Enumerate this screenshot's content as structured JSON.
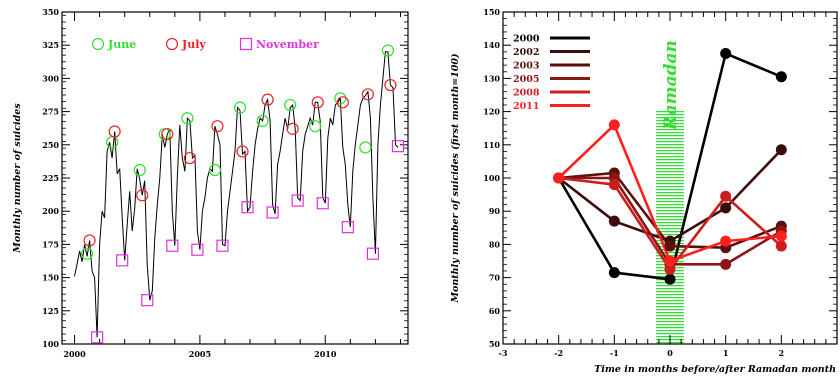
{
  "chart_data": [
    {
      "type": "line",
      "ylabel": "Monthly number of suicides",
      "xlabel": "",
      "ylim": [
        100,
        350
      ],
      "yticks": [
        100,
        125,
        150,
        175,
        200,
        225,
        250,
        275,
        300,
        325,
        350
      ],
      "xlim": [
        1999.5,
        2013.3
      ],
      "xticks": [
        2000,
        2005,
        2010
      ],
      "legend_position": "top-left",
      "legend": [
        {
          "name": "June",
          "marker": "circle",
          "color": "#33dd33"
        },
        {
          "name": "July",
          "marker": "circle",
          "color": "#ee2222"
        },
        {
          "name": "November",
          "marker": "square",
          "color": "#dd33dd"
        }
      ],
      "series": [
        {
          "name": "",
          "x": [
            2000.0,
            2000.1,
            2000.2,
            2000.3,
            2000.4,
            2000.5,
            2000.6,
            2000.7,
            2000.8,
            2000.9,
            2001.0,
            2001.1,
            2001.2,
            2001.3,
            2001.4,
            2001.5,
            2001.6,
            2001.7,
            2001.8,
            2001.9,
            2002.0,
            2002.1,
            2002.2,
            2002.3,
            2002.4,
            2002.5,
            2002.6,
            2002.7,
            2002.8,
            2002.9,
            2003.0,
            2003.1,
            2003.2,
            2003.3,
            2003.4,
            2003.5,
            2003.6,
            2003.7,
            2003.8,
            2003.9,
            2004.0,
            2004.1,
            2004.2,
            2004.3,
            2004.4,
            2004.5,
            2004.6,
            2004.7,
            2004.8,
            2004.9,
            2005.0,
            2005.1,
            2005.2,
            2005.3,
            2005.4,
            2005.5,
            2005.6,
            2005.7,
            2005.8,
            2005.9,
            2006.0,
            2006.1,
            2006.2,
            2006.3,
            2006.4,
            2006.5,
            2006.6,
            2006.7,
            2006.8,
            2006.9,
            2007.0,
            2007.1,
            2007.2,
            2007.3,
            2007.4,
            2007.5,
            2007.6,
            2007.7,
            2007.8,
            2007.9,
            2008.0,
            2008.1,
            2008.2,
            2008.3,
            2008.4,
            2008.5,
            2008.6,
            2008.7,
            2008.8,
            2008.9,
            2009.0,
            2009.1,
            2009.2,
            2009.3,
            2009.4,
            2009.5,
            2009.6,
            2009.7,
            2009.8,
            2009.9,
            2010.0,
            2010.1,
            2010.2,
            2010.3,
            2010.4,
            2010.5,
            2010.6,
            2010.7,
            2010.8,
            2010.9,
            2011.0,
            2011.1,
            2011.2,
            2011.3,
            2011.4,
            2011.5,
            2011.6,
            2011.7,
            2011.8,
            2011.9,
            2012.0,
            2012.1,
            2012.2,
            2012.3,
            2012.4,
            2012.5,
            2012.6,
            2012.7,
            2012.8,
            2012.9
          ],
          "y": [
            151,
            160,
            170,
            162,
            175,
            166,
            178,
            155,
            150,
            105,
            175,
            200,
            195,
            245,
            252,
            240,
            260,
            228,
            232,
            195,
            163,
            190,
            215,
            185,
            202,
            232,
            224,
            212,
            223,
            160,
            133,
            140,
            180,
            205,
            225,
            258,
            248,
            258,
            262,
            200,
            174,
            225,
            265,
            240,
            230,
            270,
            268,
            240,
            242,
            185,
            171,
            200,
            210,
            225,
            232,
            230,
            264,
            258,
            250,
            175,
            174,
            200,
            215,
            230,
            245,
            278,
            276,
            243,
            245,
            200,
            203,
            230,
            250,
            262,
            270,
            268,
            280,
            284,
            268,
            205,
            198,
            235,
            245,
            258,
            270,
            262,
            278,
            280,
            262,
            210,
            208,
            245,
            258,
            264,
            270,
            265,
            282,
            282,
            268,
            210,
            206,
            255,
            270,
            265,
            280,
            282,
            285,
            248,
            235,
            205,
            188,
            230,
            250,
            265,
            280,
            285,
            287,
            290,
            270,
            210,
            168,
            250,
            280,
            300,
            320,
            320,
            295,
            293,
            250,
            248
          ]
        }
      ],
      "markers": {
        "June": {
          "x": [
            2000.5,
            2001.5,
            2002.6,
            2003.6,
            2004.5,
            2005.6,
            2006.6,
            2007.5,
            2008.6,
            2009.6,
            2010.6,
            2011.6,
            2012.5
          ],
          "y": [
            168,
            252,
            231,
            258,
            270,
            231,
            278,
            268,
            280,
            264,
            285,
            248,
            321
          ]
        },
        "July": {
          "x": [
            2000.6,
            2001.6,
            2002.7,
            2003.7,
            2004.6,
            2005.7,
            2006.7,
            2007.7,
            2008.7,
            2009.7,
            2010.7,
            2011.7,
            2012.6
          ],
          "y": [
            178,
            260,
            212,
            258,
            240,
            264,
            245,
            284,
            262,
            282,
            282,
            288,
            295
          ]
        },
        "November": {
          "x": [
            2000.9,
            2001.9,
            2002.9,
            2003.9,
            2004.9,
            2005.9,
            2006.9,
            2007.9,
            2008.9,
            2009.9,
            2010.9,
            2011.9,
            2012.9
          ],
          "y": [
            105,
            163,
            133,
            174,
            171,
            174,
            203,
            199,
            208,
            206,
            188,
            168,
            249
          ]
        }
      }
    },
    {
      "type": "line",
      "ylabel": "Monthly number of suicides (first month=100)",
      "xlabel": "Time in months before/after Ramadan month",
      "xlim": [
        -3,
        3
      ],
      "xticks": [
        -3,
        -2,
        -1,
        0,
        1,
        2
      ],
      "ylim": [
        50,
        150
      ],
      "yticks": [
        50,
        60,
        70,
        80,
        90,
        100,
        110,
        120,
        130,
        140,
        150
      ],
      "annotation": {
        "text": "Ramadan",
        "x_center": 0,
        "x_halfwidth": 0.25,
        "y_from": 50,
        "y_to": 120,
        "color": "#33dd33"
      },
      "legend_position": "top-left",
      "x": [
        -2,
        -1,
        0,
        1,
        2
      ],
      "series": [
        {
          "name": "2000",
          "color": "#000000",
          "values": [
            100,
            71.5,
            69.5,
            137.5,
            130.5
          ]
        },
        {
          "name": "2002",
          "color": "#3a0d0d",
          "values": [
            100,
            87,
            81,
            91,
            108.5
          ]
        },
        {
          "name": "2003",
          "color": "#5c0f0f",
          "values": [
            100,
            101.5,
            79.5,
            79,
            85.5
          ]
        },
        {
          "name": "2005",
          "color": "#8c1515",
          "values": [
            100,
            100,
            74,
            74,
            84
          ]
        },
        {
          "name": "2008",
          "color": "#cc1c1c",
          "values": [
            100,
            98,
            72.5,
            94.5,
            79.5
          ]
        },
        {
          "name": "2011",
          "color": "#ff1f1f",
          "values": [
            100,
            116,
            75,
            81,
            82.5
          ]
        }
      ]
    }
  ]
}
